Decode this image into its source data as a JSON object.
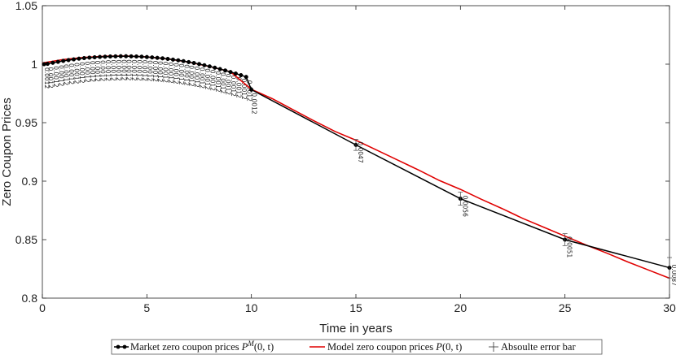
{
  "chart_data": {
    "type": "line",
    "xlabel": "Time in years",
    "ylabel": "Zero Coupon Prices",
    "xlim": [
      0,
      30
    ],
    "ylim": [
      0.8,
      1.05
    ],
    "xticks": [
      0,
      5,
      10,
      15,
      20,
      25,
      30
    ],
    "yticks": [
      0.8,
      0.85,
      0.9,
      0.95,
      1,
      1.05
    ],
    "ytick_labels": [
      "0.8",
      "0.85",
      "0.9",
      "0.95",
      "1",
      "1.05"
    ],
    "grid": false,
    "legend_position": "bottom",
    "series": [
      {
        "name": "Market zero coupon prices P^M(0,t)",
        "color": "#000000",
        "marker": "circle",
        "x": [
          0.0833,
          0.25,
          0.5,
          0.75,
          1,
          1.25,
          1.5,
          1.75,
          2,
          2.25,
          2.5,
          2.75,
          3,
          3.25,
          3.5,
          3.75,
          4,
          4.25,
          4.5,
          4.75,
          5,
          5.25,
          5.5,
          5.75,
          6,
          6.25,
          6.5,
          6.75,
          7,
          7.25,
          7.5,
          7.75,
          8,
          8.25,
          8.5,
          8.75,
          9,
          9.25,
          9.5,
          9.75,
          10,
          15,
          20,
          25,
          30
        ],
        "y": [
          1.0,
          1.0003,
          1.0012,
          1.002,
          1.0028,
          1.0035,
          1.0041,
          1.0047,
          1.0052,
          1.0056,
          1.0059,
          1.0062,
          1.0064,
          1.0066,
          1.0067,
          1.0068,
          1.0068,
          1.0067,
          1.0066,
          1.0064,
          1.0061,
          1.0058,
          1.0054,
          1.005,
          1.0045,
          1.0039,
          1.0033,
          1.0026,
          1.0018,
          1.001,
          1.0001,
          0.9991,
          0.9981,
          0.997,
          0.9958,
          0.9946,
          0.9933,
          0.992,
          0.9906,
          0.9891,
          0.9782,
          0.931,
          0.885,
          0.85,
          0.826
        ]
      },
      {
        "name": "Model zero coupon prices P(0,t)",
        "color": "#e00000",
        "x": [
          0,
          1,
          2,
          3,
          4,
          5,
          6,
          7,
          8,
          9,
          10,
          11,
          12,
          13,
          14,
          15,
          16,
          17,
          18,
          19,
          20,
          21,
          22,
          23,
          24,
          25,
          26,
          27,
          28,
          29,
          30
        ],
        "y": [
          1.001,
          1.004,
          1.0058,
          1.0068,
          1.007,
          1.0062,
          1.0045,
          1.0018,
          0.998,
          0.9935,
          0.9785,
          0.9705,
          0.961,
          0.9515,
          0.9425,
          0.935,
          0.9265,
          0.918,
          0.9095,
          0.9005,
          0.893,
          0.8845,
          0.8765,
          0.868,
          0.8605,
          0.853,
          0.8455,
          0.8385,
          0.831,
          0.824,
          0.817
        ]
      }
    ],
    "error_bars": {
      "name": "Absoulte error bar",
      "x": [
        15,
        20,
        25,
        30
      ],
      "y": [
        0.931,
        0.885,
        0.85,
        0.826
      ],
      "half_width": [
        0.0047,
        0.0056,
        0.0051,
        0.0087
      ],
      "labels": [
        "0.0047",
        "0.0056",
        "0.0051",
        "0.0087"
      ]
    },
    "short_term_error_labels": [
      "0.0012"
    ]
  },
  "legend": {
    "market": {
      "text": "Market zero coupon prices ",
      "math": "P",
      "sup": "M",
      "args": "(0, t)"
    },
    "model": {
      "text": "Model zero coupon prices ",
      "math": "P",
      "args": "(0, t)"
    },
    "errbar": {
      "text": "Absoulte error bar"
    }
  },
  "colors": {
    "market": "#000000",
    "model": "#e00000",
    "axis": "#222222"
  }
}
